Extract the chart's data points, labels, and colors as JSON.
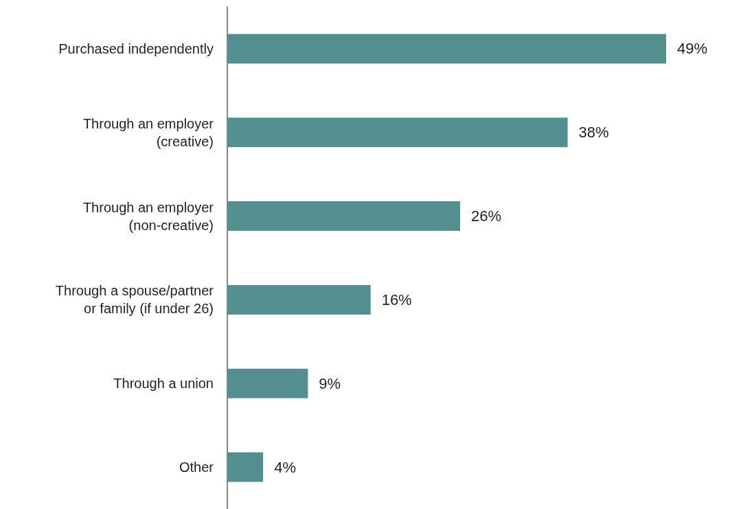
{
  "chart_data": {
    "type": "bar",
    "orientation": "horizontal",
    "categories": [
      "Purchased independently",
      "Through an employer\n(creative)",
      "Through an employer\n(non-creative)",
      "Through a spouse/partner\nor family (if under 26)",
      "Through a union",
      "Other"
    ],
    "values": [
      49,
      38,
      26,
      16,
      9,
      4
    ],
    "value_labels": [
      "49%",
      "38%",
      "26%",
      "16%",
      "9%",
      "4%"
    ],
    "color": "#538f8f"
  }
}
